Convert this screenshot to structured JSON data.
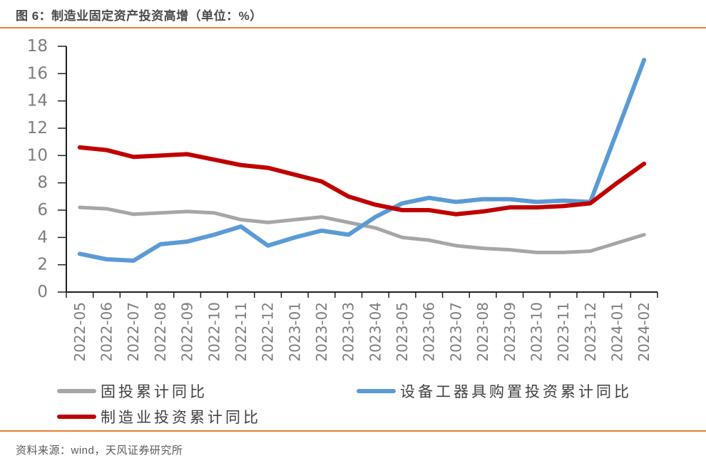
{
  "header": {
    "title": "图 6：制造业固定资产投资高增（单位：%）"
  },
  "footer": {
    "source": "资料来源：wind，天风证券研究所"
  },
  "colors": {
    "accent_orange": "#ED7D31",
    "axis": "#1f1f1f",
    "tick_label": "#7d7d7d",
    "gray": "#A6A6A6",
    "blue": "#5B9BD5",
    "red": "#C00000"
  },
  "chart_data": {
    "type": "line",
    "title": "制造业固定资产投资高增",
    "unit": "%",
    "ylim": [
      0,
      18
    ],
    "ytick_step": 2,
    "grid": false,
    "legend_position": "bottom",
    "categories": [
      "2022-05",
      "2022-06",
      "2022-07",
      "2022-08",
      "2022-09",
      "2022-10",
      "2022-11",
      "2022-12",
      "2023-01",
      "2023-02",
      "2023-03",
      "2023-04",
      "2023-05",
      "2023-06",
      "2023-07",
      "2023-08",
      "2023-09",
      "2023-10",
      "2023-11",
      "2023-12",
      "2024-01",
      "2024-02"
    ],
    "series": [
      {
        "name": "固投累计同比",
        "color_key": "gray",
        "line_width": 5,
        "values": [
          6.2,
          6.1,
          5.7,
          5.8,
          5.9,
          5.8,
          5.3,
          5.1,
          5.3,
          5.5,
          5.1,
          4.7,
          4.0,
          3.8,
          3.4,
          3.2,
          3.1,
          2.9,
          2.9,
          3.0,
          3.6,
          4.2
        ]
      },
      {
        "name": "设备工器具购置投资累计同比",
        "color_key": "blue",
        "line_width": 6,
        "values": [
          2.8,
          2.4,
          2.3,
          3.5,
          3.7,
          4.2,
          4.8,
          3.4,
          4.0,
          4.5,
          4.2,
          5.5,
          6.5,
          6.9,
          6.6,
          6.8,
          6.8,
          6.6,
          6.7,
          6.6,
          11.8,
          17.0
        ]
      },
      {
        "name": "制造业投资累计同比",
        "color_key": "red",
        "line_width": 6,
        "values": [
          10.6,
          10.4,
          9.9,
          10.0,
          10.1,
          9.7,
          9.3,
          9.1,
          8.6,
          8.1,
          7.0,
          6.4,
          6.0,
          6.0,
          5.7,
          5.9,
          6.2,
          6.2,
          6.3,
          6.5,
          8.0,
          9.4
        ]
      }
    ]
  }
}
